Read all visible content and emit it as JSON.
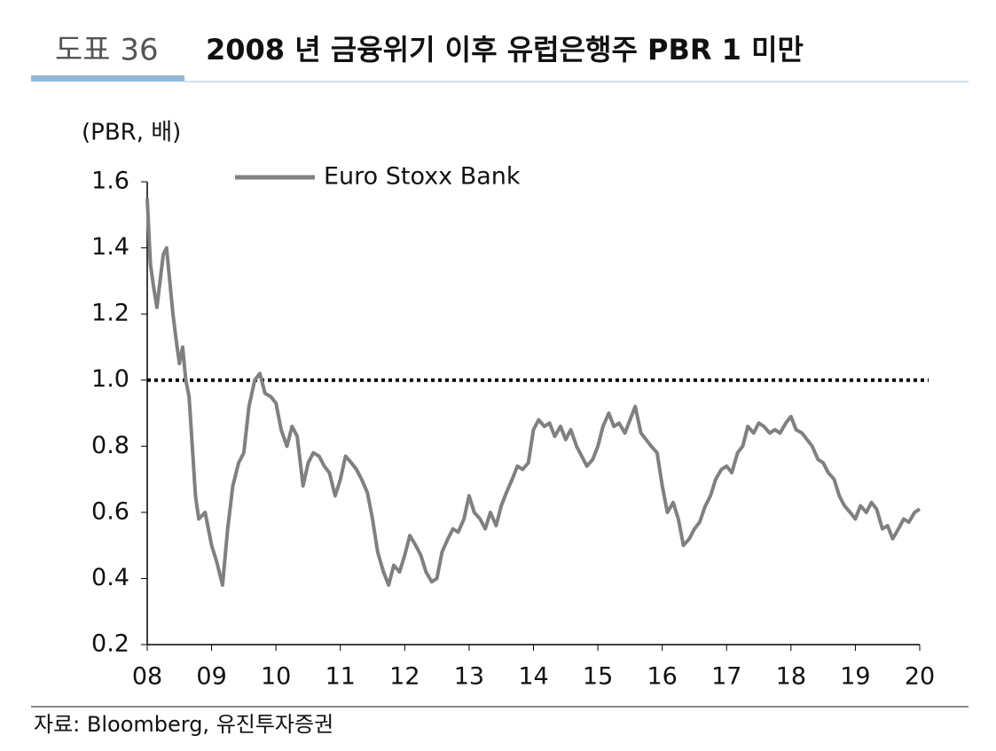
{
  "chart_data": {
    "type": "line",
    "figure_label": "도표 36",
    "title": "2008 년 금융위기 이후 유럽은행주 PBR 1 미만",
    "y_label": "(PBR, 배)",
    "source": "자료: Bloomberg, 유진투자증권",
    "xlim": [
      2008,
      2020
    ],
    "xticks": [
      {
        "value": 2008,
        "label": "08"
      },
      {
        "value": 2009,
        "label": "09"
      },
      {
        "value": 2010,
        "label": "10"
      },
      {
        "value": 2011,
        "label": "11"
      },
      {
        "value": 2012,
        "label": "12"
      },
      {
        "value": 2013,
        "label": "13"
      },
      {
        "value": 2014,
        "label": "14"
      },
      {
        "value": 2015,
        "label": "15"
      },
      {
        "value": 2016,
        "label": "16"
      },
      {
        "value": 2017,
        "label": "17"
      },
      {
        "value": 2018,
        "label": "18"
      },
      {
        "value": 2019,
        "label": "19"
      },
      {
        "value": 2020,
        "label": "20"
      }
    ],
    "ylim": [
      0.2,
      1.6
    ],
    "yticks": [
      0.2,
      0.4,
      0.6,
      0.8,
      {
        "value": 1,
        "label": "1.0"
      },
      1.2,
      1.4,
      1.6
    ],
    "hline": 1.0,
    "x": [
      2008.0,
      2008.05,
      2008.1,
      2008.15,
      2008.2,
      2008.25,
      2008.3,
      2008.35,
      2008.4,
      2008.45,
      2008.5,
      2008.55,
      2008.6,
      2008.65,
      2008.7,
      2008.75,
      2008.8,
      2008.9,
      2009.0,
      2009.08,
      2009.17,
      2009.25,
      2009.33,
      2009.42,
      2009.5,
      2009.58,
      2009.67,
      2009.75,
      2009.83,
      2009.92,
      2010.0,
      2010.08,
      2010.17,
      2010.25,
      2010.33,
      2010.42,
      2010.5,
      2010.58,
      2010.67,
      2010.75,
      2010.83,
      2010.92,
      2011.0,
      2011.08,
      2011.17,
      2011.25,
      2011.33,
      2011.42,
      2011.5,
      2011.58,
      2011.67,
      2011.75,
      2011.83,
      2011.92,
      2012.0,
      2012.08,
      2012.17,
      2012.25,
      2012.33,
      2012.42,
      2012.5,
      2012.58,
      2012.67,
      2012.75,
      2012.83,
      2012.92,
      2013.0,
      2013.08,
      2013.17,
      2013.25,
      2013.33,
      2013.42,
      2013.5,
      2013.58,
      2013.67,
      2013.75,
      2013.83,
      2013.92,
      2014.0,
      2014.08,
      2014.17,
      2014.25,
      2014.33,
      2014.42,
      2014.5,
      2014.58,
      2014.67,
      2014.75,
      2014.83,
      2014.92,
      2015.0,
      2015.08,
      2015.17,
      2015.25,
      2015.33,
      2015.42,
      2015.5,
      2015.58,
      2015.67,
      2015.75,
      2015.83,
      2015.92,
      2016.0,
      2016.08,
      2016.17,
      2016.25,
      2016.33,
      2016.42,
      2016.5,
      2016.58,
      2016.67,
      2016.75,
      2016.83,
      2016.92,
      2017.0,
      2017.08,
      2017.17,
      2017.25,
      2017.33,
      2017.42,
      2017.5,
      2017.58,
      2017.67,
      2017.75,
      2017.83,
      2017.92,
      2018.0,
      2018.08,
      2018.17,
      2018.25,
      2018.33,
      2018.42,
      2018.5,
      2018.58,
      2018.67,
      2018.75,
      2018.83,
      2018.92,
      2019.0,
      2019.08,
      2019.17,
      2019.25,
      2019.33,
      2019.42,
      2019.5,
      2019.58,
      2019.67,
      2019.75,
      2019.83,
      2019.92,
      2020.0
    ],
    "series": [
      {
        "name": "Euro Stoxx Bank",
        "color": "#808080",
        "values": [
          1.55,
          1.35,
          1.28,
          1.22,
          1.3,
          1.38,
          1.4,
          1.3,
          1.2,
          1.12,
          1.05,
          1.1,
          1.0,
          0.95,
          0.8,
          0.65,
          0.58,
          0.6,
          0.5,
          0.45,
          0.38,
          0.55,
          0.68,
          0.75,
          0.78,
          0.92,
          1.0,
          1.02,
          0.96,
          0.95,
          0.93,
          0.85,
          0.8,
          0.86,
          0.83,
          0.68,
          0.75,
          0.78,
          0.77,
          0.74,
          0.72,
          0.65,
          0.7,
          0.77,
          0.75,
          0.73,
          0.7,
          0.66,
          0.58,
          0.48,
          0.42,
          0.38,
          0.44,
          0.42,
          0.47,
          0.53,
          0.5,
          0.47,
          0.42,
          0.39,
          0.4,
          0.48,
          0.52,
          0.55,
          0.54,
          0.58,
          0.65,
          0.6,
          0.58,
          0.55,
          0.6,
          0.56,
          0.62,
          0.66,
          0.7,
          0.74,
          0.73,
          0.75,
          0.85,
          0.88,
          0.86,
          0.87,
          0.83,
          0.86,
          0.82,
          0.85,
          0.8,
          0.77,
          0.74,
          0.76,
          0.8,
          0.86,
          0.9,
          0.86,
          0.87,
          0.84,
          0.88,
          0.92,
          0.84,
          0.82,
          0.8,
          0.78,
          0.68,
          0.6,
          0.63,
          0.58,
          0.5,
          0.52,
          0.55,
          0.57,
          0.62,
          0.65,
          0.7,
          0.73,
          0.74,
          0.72,
          0.78,
          0.8,
          0.86,
          0.84,
          0.87,
          0.86,
          0.84,
          0.85,
          0.84,
          0.87,
          0.89,
          0.85,
          0.84,
          0.82,
          0.8,
          0.76,
          0.75,
          0.72,
          0.7,
          0.65,
          0.62,
          0.6,
          0.58,
          0.62,
          0.6,
          0.63,
          0.61,
          0.55,
          0.56,
          0.52,
          0.55,
          0.58,
          0.57,
          0.6,
          0.61
        ]
      }
    ]
  }
}
